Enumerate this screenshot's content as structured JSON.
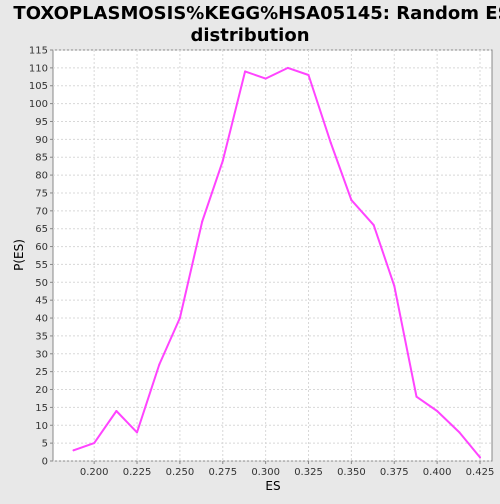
{
  "chart_data": {
    "type": "line",
    "title": [
      "TOXOPLASMOSIS%KEGG%HSA05145: Random ES",
      "distribution"
    ],
    "xlabel": "ES",
    "ylabel": "P(ES)",
    "xlim": [
      0.176,
      0.432
    ],
    "ylim": [
      0,
      115
    ],
    "x_ticks": [
      "0.200",
      "0.225",
      "0.250",
      "0.275",
      "0.300",
      "0.325",
      "0.350",
      "0.375",
      "0.400",
      "0.425"
    ],
    "y_ticks": [
      0,
      5,
      10,
      15,
      20,
      25,
      30,
      35,
      40,
      45,
      50,
      55,
      60,
      65,
      70,
      75,
      80,
      85,
      90,
      95,
      100,
      105,
      110,
      115
    ],
    "grid": true,
    "series": [
      {
        "color": "#ff44ff",
        "x": [
          0.188,
          0.2,
          0.213,
          0.225,
          0.238,
          0.25,
          0.263,
          0.275,
          0.288,
          0.3,
          0.313,
          0.325,
          0.338,
          0.35,
          0.363,
          0.375,
          0.388,
          0.4,
          0.413,
          0.425
        ],
        "y": [
          3,
          5,
          14,
          8,
          27,
          40,
          67,
          84,
          109,
          107,
          110,
          108,
          89,
          73,
          66,
          49,
          18,
          14,
          8,
          1
        ]
      }
    ]
  }
}
